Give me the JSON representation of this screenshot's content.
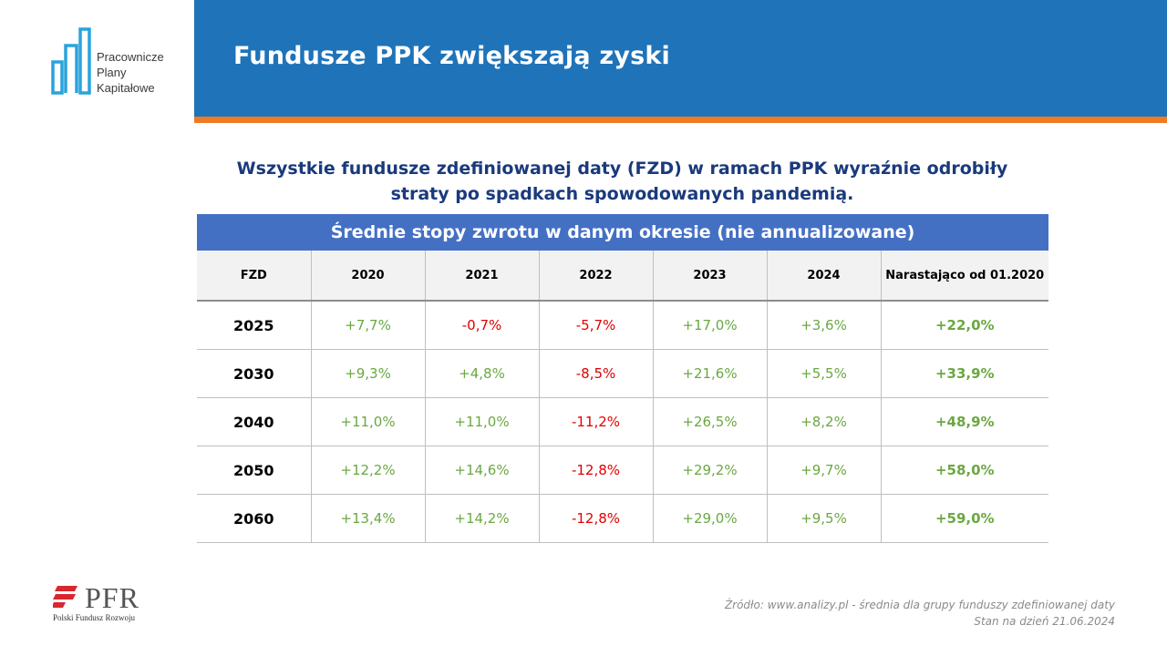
{
  "logo": {
    "lines": [
      "Pracownicze",
      "Plany",
      "Kapitałowe"
    ],
    "icon": "ppk-buildings-logo",
    "color": "#29a3dc"
  },
  "header": {
    "title": "Fundusze PPK zwiększają zyski",
    "band_color": "#1f73b9",
    "accent_color": "#f07a22"
  },
  "subtitle": {
    "line1": "Wszystkie fundusze zdefiniowanej daty (FZD) w ramach PPK wyraźnie odrobiły",
    "line2": "straty  po spadkach spowodowanych pandemią."
  },
  "table": {
    "caption": "Średnie stopy zwrotu w danym okresie (nie annualizowane)",
    "columns": [
      "FZD",
      "2020",
      "2021",
      "2022",
      "2023",
      "2024",
      "Narastająco od 01.2020"
    ],
    "rows": [
      {
        "fzd": "2025",
        "values": [
          "+7,7%",
          "-0,7%",
          "-5,7%",
          "+17,0%",
          "+3,6%"
        ],
        "total": "+22,0%"
      },
      {
        "fzd": "2030",
        "values": [
          "+9,3%",
          "+4,8%",
          "-8,5%",
          "+21,6%",
          "+5,5%"
        ],
        "total": "+33,9%"
      },
      {
        "fzd": "2040",
        "values": [
          "+11,0%",
          "+11,0%",
          "-11,2%",
          "+26,5%",
          "+8,2%"
        ],
        "total": "+48,9%"
      },
      {
        "fzd": "2050",
        "values": [
          "+12,2%",
          "+14,6%",
          "-12,8%",
          "+29,2%",
          "+9,7%"
        ],
        "total": "+58,0%"
      },
      {
        "fzd": "2060",
        "values": [
          "+13,4%",
          "+14,2%",
          "-12,8%",
          "+29,0%",
          "+9,5%"
        ],
        "total": "+59,0%"
      }
    ],
    "positive_color": "#6aa842",
    "negative_color": "#e00000",
    "caption_color": "#4470c4"
  },
  "footer": {
    "pfr_logo_text": "PFR",
    "pfr_subtitle": "Polski Fundusz Rozwoju",
    "pfr_icon": "pfr-flag-icon",
    "source_line1": "Źródło: www.analizy.pl - średnia dla grupy funduszy zdefiniowanej daty",
    "source_line2": "Stan na dzień 21.06.2024"
  }
}
